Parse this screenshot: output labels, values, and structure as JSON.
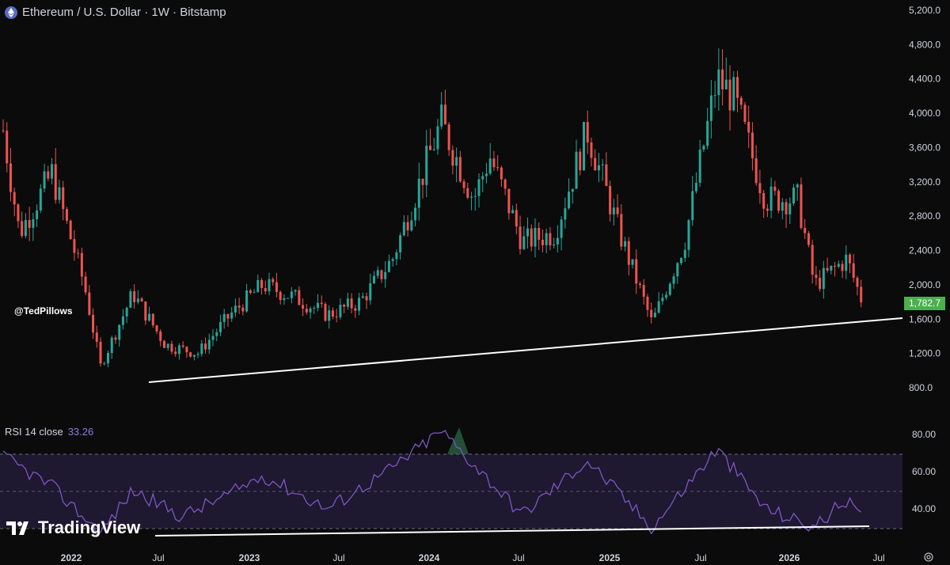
{
  "header": {
    "title": "Ethereum / U.S. Dollar · 1W · Bitstamp"
  },
  "watermark": "@TedPillows",
  "price_axis": {
    "ticks": [
      "5,200.0",
      "4,800.0",
      "4,400.0",
      "4,000.0",
      "3,600.0",
      "3,200.0",
      "2,800.0",
      "2,400.0",
      "2,000.0",
      "1,600.0",
      "1,200.0",
      "800.0"
    ],
    "tick_values": [
      5200,
      4800,
      4400,
      4000,
      3600,
      3200,
      2800,
      2400,
      2000,
      1600,
      1200,
      800
    ],
    "current_price_label": "1,782.7",
    "current_price": 1782.7
  },
  "rsi": {
    "label": "RSI 14 close",
    "value": "33.26",
    "ticks": [
      "80.00",
      "60.00",
      "40.00"
    ],
    "tick_values": [
      80,
      60,
      40
    ],
    "band_upper": 70,
    "band_mid": 50,
    "band_lower": 30
  },
  "time_axis": {
    "labels": [
      "2022",
      "Jul",
      "2023",
      "Jul",
      "2024",
      "Jul",
      "2025",
      "Jul",
      "2026",
      "Jul"
    ]
  },
  "branding": {
    "logo_text": "TradingView"
  },
  "colors": {
    "up": "#26a69a",
    "down": "#ef5350",
    "rsi_line": "#7e57c2",
    "rsi_band": "#1e1830",
    "current_price_bg": "#4caf50",
    "trendline": "#ffffff"
  },
  "chart_data": {
    "type": "candlestick",
    "interval": "1W",
    "series": [
      {
        "name": "Ethereum / U.S. Dollar",
        "trend_approx_close": [
          [
            "2021-12",
            3800
          ],
          [
            "2022-01",
            2600
          ],
          [
            "2022-03",
            3300
          ],
          [
            "2022-05",
            2000
          ],
          [
            "2022-06",
            1050
          ],
          [
            "2022-08",
            1900
          ],
          [
            "2022-10",
            1300
          ],
          [
            "2022-12",
            1200
          ],
          [
            "2023-02",
            1650
          ],
          [
            "2023-04",
            2000
          ],
          [
            "2023-06",
            1850
          ],
          [
            "2023-08",
            1650
          ],
          [
            "2023-10",
            1800
          ],
          [
            "2023-12",
            2300
          ],
          [
            "2024-03",
            3900
          ],
          [
            "2024-05",
            3000
          ],
          [
            "2024-06",
            3500
          ],
          [
            "2024-08",
            2500
          ],
          [
            "2024-10",
            2600
          ],
          [
            "2024-12",
            3800
          ],
          [
            "2025-02",
            2600
          ],
          [
            "2025-04",
            1550
          ],
          [
            "2025-06",
            2500
          ],
          [
            "2025-08",
            4400
          ],
          [
            "2025-09",
            4200
          ],
          [
            "2025-11",
            3000
          ],
          [
            "2026-01",
            3000
          ],
          [
            "2026-02",
            2000
          ],
          [
            "2026-04",
            2300
          ],
          [
            "2026-05",
            1782.7
          ]
        ]
      },
      {
        "name": "RSI 14 close",
        "trend_approx": [
          [
            "2021-12",
            68
          ],
          [
            "2022-03",
            52
          ],
          [
            "2022-06",
            27
          ],
          [
            "2022-08",
            50
          ],
          [
            "2022-11",
            36
          ],
          [
            "2023-02",
            48
          ],
          [
            "2023-04",
            58
          ],
          [
            "2023-08",
            40
          ],
          [
            "2023-12",
            62
          ],
          [
            "2024-03",
            82
          ],
          [
            "2024-06",
            55
          ],
          [
            "2024-08",
            37
          ],
          [
            "2024-12",
            66
          ],
          [
            "2025-04",
            30
          ],
          [
            "2025-08",
            72
          ],
          [
            "2025-11",
            40
          ],
          [
            "2026-02",
            30
          ],
          [
            "2026-04",
            45
          ],
          [
            "2026-05",
            33.26
          ]
        ]
      }
    ],
    "ylim": [
      800,
      5200
    ],
    "rsi_ylim": [
      20,
      85
    ],
    "grid": false,
    "annotations": [
      "trendline connecting 2022 low and 2025 low, extended",
      "trendline under RSI lows"
    ]
  }
}
